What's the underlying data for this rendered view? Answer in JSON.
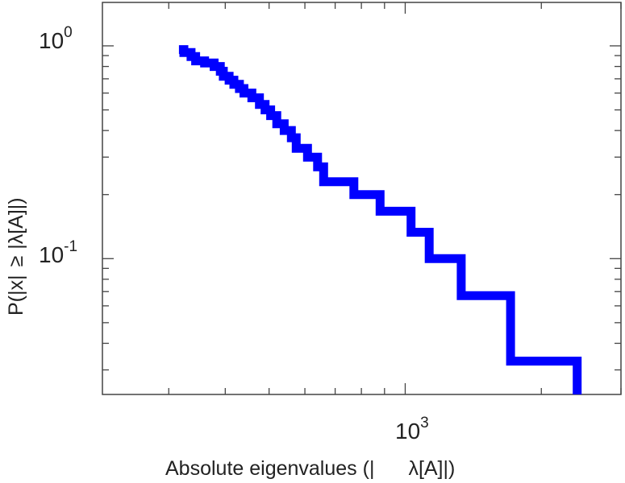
{
  "chart_data": {
    "type": "line",
    "line_style": "step",
    "x_scale": "log",
    "y_scale": "log",
    "xlim": [
      214,
      3000
    ],
    "ylim": [
      0.023,
      1.6
    ],
    "xlabel_parts": [
      "Absolute eigenvalues (|",
      "λ[A]|)"
    ],
    "ylabel_parts": [
      "P(|x|",
      "≥",
      "|",
      "λ[A]|)"
    ],
    "x_ticks": [
      {
        "base": "10",
        "exp": "3",
        "value": 1000
      }
    ],
    "y_ticks": [
      {
        "base": "10",
        "exp": "0",
        "value": 1
      },
      {
        "base": "10",
        "exp": "-1",
        "value": 0.1
      }
    ],
    "series": [
      {
        "color": "#0000ff",
        "x": [
          316,
          324,
          336,
          344,
          360,
          378,
          390,
          396,
          408,
          418,
          430,
          440,
          458,
          476,
          490,
          504,
          520,
          540,
          560,
          574,
          608,
          640,
          660,
          770,
          880,
          1030,
          1130,
          1330,
          1710,
          2260,
          2400
        ],
        "y": [
          0.96,
          0.93,
          0.89,
          0.85,
          0.83,
          0.8,
          0.76,
          0.72,
          0.69,
          0.66,
          0.63,
          0.6,
          0.57,
          0.53,
          0.5,
          0.47,
          0.43,
          0.4,
          0.37,
          0.33,
          0.3,
          0.27,
          0.23,
          0.2,
          0.167,
          0.133,
          0.1,
          0.067,
          0.033,
          0.033,
          0.023
        ]
      }
    ]
  }
}
